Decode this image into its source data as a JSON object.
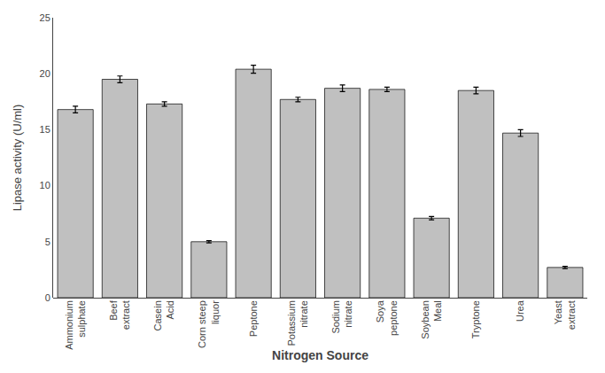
{
  "chart_data": {
    "type": "bar",
    "categories": [
      "Ammonium\nsulphate",
      "Beef\nextract",
      "Casein\nAcid",
      "Corn steep\nliquor",
      "Peptone",
      "Potassium\nnitrate",
      "Sodium\nnitrate",
      "Soya\npeptone",
      "Soybean\nMeal",
      "Tryptone",
      "Urea",
      "Yeast\nextract"
    ],
    "values": [
      16.8,
      19.5,
      17.3,
      5.0,
      20.4,
      17.7,
      18.7,
      18.6,
      7.1,
      18.5,
      14.7,
      2.7
    ],
    "errors": [
      0.3,
      0.3,
      0.2,
      0.1,
      0.35,
      0.2,
      0.3,
      0.2,
      0.15,
      0.3,
      0.3,
      0.1
    ],
    "color": "#c0c0c0",
    "xlabel": "Nitrogen Source",
    "ylabel": "Lipase activity (U/ml)",
    "ylim": [
      0,
      25
    ],
    "yticks": [
      0,
      5,
      10,
      15,
      20,
      25
    ],
    "grid": false
  }
}
